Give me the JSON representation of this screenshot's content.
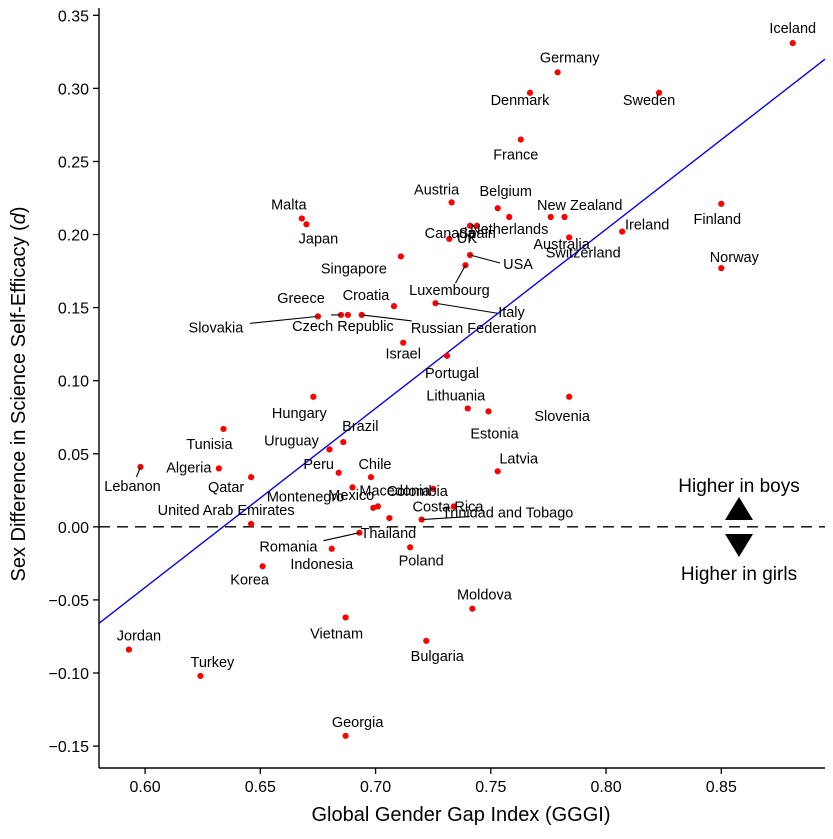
{
  "chart_data": {
    "type": "scatter",
    "xlabel": "Global Gender Gap Index (GGGI)",
    "ylabel_main": "Sex Difference in Science Self-Efficacy (",
    "ylabel_var": "d",
    "ylabel_close": ")",
    "xlim": [
      0.58,
      0.895
    ],
    "ylim": [
      -0.165,
      0.355
    ],
    "xticks": [
      0.6,
      0.65,
      0.7,
      0.75,
      0.8,
      0.85
    ],
    "xtick_labels": [
      "0.60",
      "0.65",
      "0.70",
      "0.75",
      "0.80",
      "0.85"
    ],
    "yticks": [
      -0.15,
      -0.1,
      -0.05,
      0.0,
      0.05,
      0.1,
      0.15,
      0.2,
      0.25,
      0.3,
      0.35
    ],
    "ytick_labels": [
      "−0.15",
      "−0.10",
      "−0.05",
      "0.00",
      "0.05",
      "0.10",
      "0.15",
      "0.20",
      "0.25",
      "0.30",
      "0.35"
    ],
    "point_color": "#ff0000",
    "fit_line": {
      "x": [
        0.58,
        0.895
      ],
      "y": [
        -0.066,
        0.32
      ],
      "color": "#0000ff"
    },
    "reference_line": {
      "y": 0.0,
      "style": "dashed"
    },
    "annotations": {
      "boys": "Higher in boys",
      "girls": "Higher in girls"
    },
    "points": [
      {
        "label": "Iceland",
        "x": 0.881,
        "y": 0.331
      },
      {
        "label": "Germany",
        "x": 0.779,
        "y": 0.311
      },
      {
        "label": "Denmark",
        "x": 0.767,
        "y": 0.297
      },
      {
        "label": "Sweden",
        "x": 0.823,
        "y": 0.297
      },
      {
        "label": "France",
        "x": 0.763,
        "y": 0.265
      },
      {
        "label": "Finland",
        "x": 0.85,
        "y": 0.221
      },
      {
        "label": "Austria",
        "x": 0.733,
        "y": 0.222
      },
      {
        "label": "Belgium",
        "x": 0.753,
        "y": 0.218
      },
      {
        "label": "Malta",
        "x": 0.668,
        "y": 0.211
      },
      {
        "label": "Japan",
        "x": 0.67,
        "y": 0.207
      },
      {
        "label": "Canada",
        "x": 0.741,
        "y": 0.206
      },
      {
        "label": "UK",
        "x": 0.744,
        "y": 0.206
      },
      {
        "label": "New Zealand",
        "x": 0.776,
        "y": 0.212
      },
      {
        "label": "Netherlands",
        "x": 0.758,
        "y": 0.212
      },
      {
        "label": "Ireland",
        "x": 0.807,
        "y": 0.202
      },
      {
        "label": "Switzerland",
        "x": 0.784,
        "y": 0.198
      },
      {
        "label": "Spain",
        "x": 0.732,
        "y": 0.197
      },
      {
        "label": "Australia",
        "x": 0.782,
        "y": 0.212
      },
      {
        "label": "USA",
        "x": 0.741,
        "y": 0.186
      },
      {
        "label": "Singapore",
        "x": 0.711,
        "y": 0.185
      },
      {
        "label": "Norway",
        "x": 0.85,
        "y": 0.177
      },
      {
        "label": "Luxembourg",
        "x": 0.739,
        "y": 0.179
      },
      {
        "label": "Italy",
        "x": 0.726,
        "y": 0.153
      },
      {
        "label": "Croatia",
        "x": 0.708,
        "y": 0.151
      },
      {
        "label": "Greece",
        "x": 0.685,
        "y": 0.145
      },
      {
        "label": "Czech Republic",
        "x": 0.688,
        "y": 0.145
      },
      {
        "label": "Slovakia",
        "x": 0.675,
        "y": 0.144
      },
      {
        "label": "Russian Federation",
        "x": 0.694,
        "y": 0.145
      },
      {
        "label": "Israel",
        "x": 0.712,
        "y": 0.126
      },
      {
        "label": "Portugal",
        "x": 0.731,
        "y": 0.117
      },
      {
        "label": "Hungary",
        "x": 0.673,
        "y": 0.089
      },
      {
        "label": "Slovenia",
        "x": 0.784,
        "y": 0.089
      },
      {
        "label": "Lithuania",
        "x": 0.74,
        "y": 0.081
      },
      {
        "label": "Estonia",
        "x": 0.749,
        "y": 0.079
      },
      {
        "label": "Tunisia",
        "x": 0.634,
        "y": 0.067
      },
      {
        "label": "Brazil",
        "x": 0.686,
        "y": 0.058
      },
      {
        "label": "Uruguay",
        "x": 0.68,
        "y": 0.053
      },
      {
        "label": "Lebanon",
        "x": 0.598,
        "y": 0.041
      },
      {
        "label": "Algeria",
        "x": 0.632,
        "y": 0.04
      },
      {
        "label": "Latvia",
        "x": 0.753,
        "y": 0.038
      },
      {
        "label": "Peru",
        "x": 0.684,
        "y": 0.037
      },
      {
        "label": "Chile",
        "x": 0.698,
        "y": 0.034
      },
      {
        "label": "Qatar",
        "x": 0.646,
        "y": 0.034
      },
      {
        "label": "Montenegro",
        "x": 0.69,
        "y": 0.027
      },
      {
        "label": "Colombia",
        "x": 0.725,
        "y": 0.026
      },
      {
        "label": "Macedonia",
        "x": 0.701,
        "y": 0.014
      },
      {
        "label": "Costa Rica",
        "x": 0.734,
        "y": 0.014
      },
      {
        "label": "United Arab Emirates",
        "x": 0.646,
        "y": 0.002
      },
      {
        "label": "Mexico",
        "x": 0.699,
        "y": 0.013
      },
      {
        "label": "Trinidad and Tobago",
        "x": 0.72,
        "y": 0.005
      },
      {
        "label": "Thailand",
        "x": 0.706,
        "y": 0.006
      },
      {
        "label": "Romania",
        "x": 0.693,
        "y": -0.004
      },
      {
        "label": "Indonesia",
        "x": 0.681,
        "y": -0.015
      },
      {
        "label": "Poland",
        "x": 0.715,
        "y": -0.014
      },
      {
        "label": "Korea",
        "x": 0.651,
        "y": -0.027
      },
      {
        "label": "Moldova",
        "x": 0.742,
        "y": -0.056
      },
      {
        "label": "Vietnam",
        "x": 0.687,
        "y": -0.062
      },
      {
        "label": "Bulgaria",
        "x": 0.722,
        "y": -0.078
      },
      {
        "label": "Jordan",
        "x": 0.593,
        "y": -0.084
      },
      {
        "label": "Turkey",
        "x": 0.624,
        "y": -0.102
      },
      {
        "label": "Georgia",
        "x": 0.687,
        "y": -0.143
      }
    ]
  }
}
